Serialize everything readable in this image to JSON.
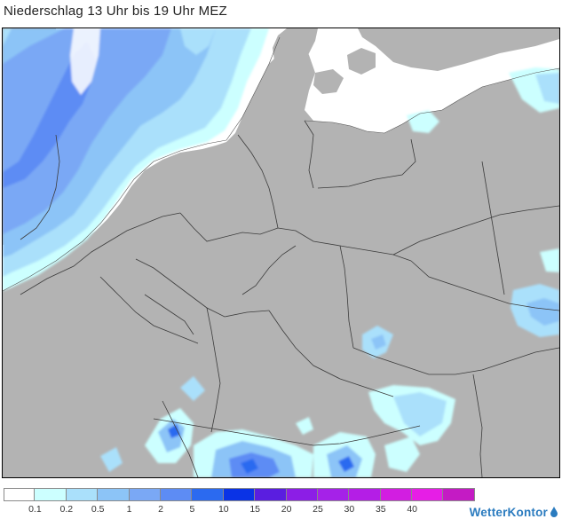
{
  "title": "Niederschlag 13 Uhr bis 19 Uhr MEZ",
  "legend": {
    "colors": [
      "#ffffff",
      "#ccffff",
      "#aae0fb",
      "#8cc4f7",
      "#7aa8f5",
      "#5d8cf4",
      "#2b6af0",
      "#0a33e6",
      "#5a1ee0",
      "#8c1ee6",
      "#a522e8",
      "#b41ee6",
      "#d21ee1",
      "#e61ee6",
      "#c41bc4"
    ],
    "ticks": [
      "0.1",
      "0.2",
      "0.5",
      "1",
      "2",
      "5",
      "10",
      "15",
      "20",
      "25",
      "30",
      "35",
      "40"
    ]
  },
  "brand": {
    "name": "WetterKontor"
  },
  "map": {
    "land_color": "#b3b3b3",
    "sea_color": "#ffffff",
    "border_color": "#3c3c3c"
  }
}
